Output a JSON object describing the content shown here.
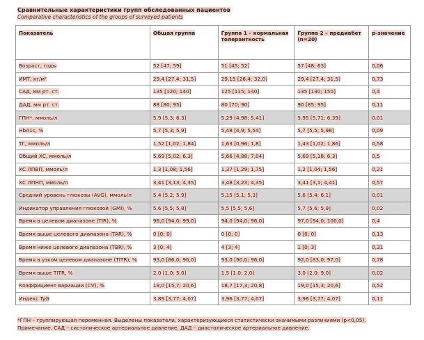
{
  "title": "Сравнительные характеристики групп обследованных пациентов",
  "subtitle": "Comparative characteristics of the groups of surveyed patients",
  "table": {
    "header": [
      "Показатель",
      "Общая группа",
      "Группа 1 – нормальная толерантность",
      "Группа 2 – предиабет (n=20)",
      "p-значение"
    ],
    "rows": [
      [
        "Возраст, годы",
        "52 [47; 59]",
        "51 [45; 52]",
        "57 [48; 63]",
        "0,06"
      ],
      [
        "ИМТ, кг/м²",
        "29,4 [27,4; 31,5]",
        "29,15 [26,4; 32,0]",
        "29,4 [27,4; 31,5]",
        "0,73"
      ],
      [
        "САД, мм рт. ст.",
        "135 [120; 140]",
        "125 [115; 140]",
        "135 [130; 150]",
        "0,4"
      ],
      [
        "ДАД, мм рт. ст.",
        "88 [80; 95]",
        "80 [70; 90]",
        "90 [85; 95]",
        "0,11"
      ],
      [
        "ГПН*, ммоль/л",
        "5,9 [5,3; 6,3]",
        "5,29 [4,98; 5,41]",
        "5,95 [5,71; 6,39]",
        "0,01"
      ],
      [
        "HbA1c, %",
        "5,7 [5,3; 5,9]",
        "5,48 [4,9; 5,54]",
        "5,7 [5,5; 5,98]",
        "0,09"
      ],
      [
        "ТГ, ммоль/л",
        "1,52 [1,02; 1,84]",
        "1,63 [0,96; 1,8]",
        "1,43 [1,02; 1,86]",
        "0,58"
      ],
      [
        "Общий ХС, ммоль/л",
        "5,69 [5,02; 6,3]",
        "5,66 [4,88; 7,04]",
        "5,69 [5,18; 6,3]",
        "0,5"
      ],
      [
        "ХС ЛПВП, ммоль/л",
        "1,3 [1,08; 1,56]",
        "1,37 [1,29; 1,75]",
        "1,2 [1,04; 1,56]",
        "0,21"
      ],
      [
        "ХС ЛПНП, ммоль/л",
        "3,41 [3,13; 4,35]",
        "3,48 [3,23; 4,35]",
        "3,41 [3,1; 4,41]",
        "0,57"
      ],
      [
        "Средний уровень глюкозы (AVG), ммоль/л",
        "5,4 [5,2; 5,9]",
        "5,15 [5,1; 5,3]",
        "5,6 [5,4; 6,1]",
        "0,01"
      ],
      [
        "Индикатор управления глюкозой (GMI), %",
        "5,6 [5,5; 5,8]",
        "5,5 [5,5; 5,6]",
        "5,7 [5,6; 5,9]",
        "0,02"
      ],
      [
        "Время в целевом диапазоне (TIR), %",
        "96,0 [94,0; 99,0]",
        "94,0 [94,0; 96,0]",
        "97,0 [94,0; 100,0]",
        "0,4"
      ],
      [
        "Время выше целевого диапазона (TAR), %",
        "0 [0; 0]",
        "0 [0; 0]",
        "0 [0; 0]",
        "0,13"
      ],
      [
        "Время ниже целевого диапазона (TBR), %",
        "3 [0; 4]",
        "4 [3; 4]",
        "1 [0; 3]",
        "0,31"
      ],
      [
        "Время в узком целевом диапазоне (TITR), %",
        "93,0 [86,0; 96,0]",
        "93,0 [90,0; 96,0]",
        "92,0 [83,0; 97,0]",
        "0,78"
      ],
      [
        "Время выше TITR, %",
        "2,0 [1,0; 5,0]",
        "1,5 [1,0; 2,0]",
        "3,0 [2,0; 9,0]",
        "0,02"
      ],
      [
        "Коэффициент вариации (CV), %",
        "19,0 [15,7; 20,6]",
        "18,7 [17,3; 20,8]",
        "19,0 [15,3; 20,6]",
        "0,52"
      ],
      [
        "Индекс TyG",
        "3,89 [3,77; 4,07]",
        "3,96 [3,77; 4,07]",
        "3,96 [3,77; 4,07]",
        "0,11"
      ]
    ],
    "highlighted": [
      4,
      10,
      11,
      16
    ]
  },
  "footnote": "*ГПН – группирующая переменная. Выделены показатели, характеризующиеся статистически значимыми различиями (p<0,05).",
  "note": "Примечание. САД – систолическое артериальное давление, ДАД – диастолическое артериальное давление."
}
